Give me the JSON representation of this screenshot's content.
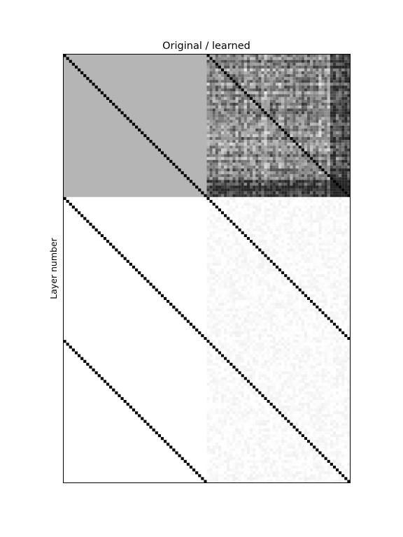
{
  "chart_data": {
    "type": "heatmap",
    "title": "Original / learned",
    "xlabel": "",
    "ylabel": "Layer number",
    "colormap": "grayscale (white = 0, black = 1)",
    "grid": false,
    "legend": "none",
    "matrix_size": {
      "rows": 150,
      "cols": 100
    },
    "blocks": {
      "rows": 3,
      "cols": 2,
      "block_rows": 50,
      "block_cols": 50
    },
    "original_panel": {
      "top_block": {
        "fill_value": 0.29,
        "diagonal_value": 1.0
      },
      "middle_block": {
        "fill_value": 0.0,
        "diagonal_value": 1.0
      },
      "bottom_block": {
        "fill_value": 0.0,
        "diagonal_value": 1.0
      }
    },
    "learned_panel": {
      "top_block": {
        "noise_range": [
          0.02,
          0.85
        ],
        "diagonal_value": 1.0,
        "dense_bottom_rows": 6,
        "dense_right_cols": 7
      },
      "middle_block": {
        "noise_range": [
          0.0,
          0.06
        ],
        "diagonal_value": 1.0
      },
      "bottom_block": {
        "noise_range": [
          0.0,
          0.06
        ],
        "diagonal_value": 1.0
      }
    }
  }
}
